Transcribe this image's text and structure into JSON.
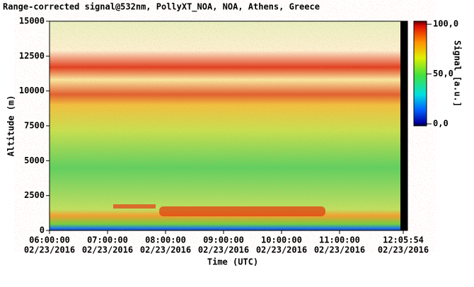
{
  "chart_data": {
    "type": "heatmap",
    "title": "Range-corrected signal@532nm, PollyXT_NOA, NOA, Athens, Greece",
    "xlabel": "Time (UTC)",
    "ylabel": "Altitude (m)",
    "xlim": [
      6,
      12.098333
    ],
    "xticks": [
      {
        "value": 6,
        "label": "06:00:00",
        "date": "02/23/2016"
      },
      {
        "value": 7,
        "label": "07:00:00",
        "date": "02/23/2016"
      },
      {
        "value": 8,
        "label": "08:00:00",
        "date": "02/23/2016"
      },
      {
        "value": 9,
        "label": "09:00:00",
        "date": "02/23/2016"
      },
      {
        "value": 10,
        "label": "10:00:00",
        "date": "02/23/2016"
      },
      {
        "value": 11,
        "label": "11:00:00",
        "date": "02/23/2016"
      },
      {
        "value": 12.098333,
        "label": "12:05:54",
        "date": "02/23/2016"
      }
    ],
    "ylim": [
      0,
      15000
    ],
    "yticks": [
      0,
      2500,
      5000,
      7500,
      10000,
      12500,
      15000
    ],
    "colorbar": {
      "label": "Signal [a.u.]",
      "clim": [
        -2,
        103
      ],
      "ticks": [
        {
          "value": 0,
          "label": "0,0"
        },
        {
          "value": 50,
          "label": "50,0"
        },
        {
          "value": 100,
          "label": "100,0"
        }
      ]
    }
  }
}
